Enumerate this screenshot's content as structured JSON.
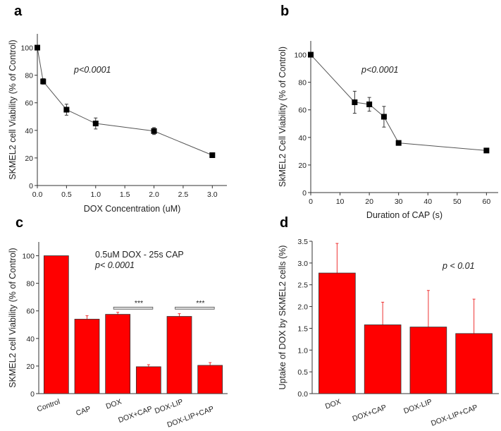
{
  "chart_data": [
    {
      "panel": "a",
      "type": "line",
      "xlabel": "DOX Concentration (uM)",
      "ylabel": "SKMEL2 cell Viability (% of Control)",
      "annotation": "p<0.0001",
      "x": [
        0,
        0.1,
        0.5,
        1.0,
        2.0,
        3.0
      ],
      "y": [
        100,
        75.5,
        55,
        45,
        39.5,
        22
      ],
      "yerr": [
        0,
        2,
        4,
        4,
        2.5,
        1
      ],
      "xlim": [
        0,
        3.25
      ],
      "ylim": [
        0,
        110
      ],
      "xticks": [
        "0.0",
        "0.5",
        "1.0",
        "1.5",
        "2.0",
        "2.5",
        "3.0"
      ],
      "yticks": [
        "0",
        "20",
        "40",
        "60",
        "80",
        "100"
      ],
      "marker": "square",
      "color": "#000000",
      "grid": false
    },
    {
      "panel": "b",
      "type": "line",
      "xlabel": "Duration of CAP (s)",
      "ylabel": "SkMEL2 Cell Viability  (% of Control)",
      "annotation": "p<0.0001",
      "x": [
        0,
        15,
        20,
        25,
        30,
        60
      ],
      "y": [
        100,
        65.5,
        64,
        55,
        36,
        30.5
      ],
      "yerr": [
        0,
        8,
        5,
        7.5,
        1,
        1.5
      ],
      "xlim": [
        0,
        64
      ],
      "ylim": [
        0,
        110
      ],
      "xticks": [
        "0",
        "10",
        "20",
        "30",
        "40",
        "50",
        "60"
      ],
      "yticks": [
        "0",
        "20",
        "40",
        "60",
        "80",
        "100"
      ],
      "marker": "square",
      "color": "#000000",
      "grid": false
    },
    {
      "panel": "c",
      "type": "bar",
      "ylabel": "SKMEL2  cell Viability (% of Control)",
      "annotation_line1": "0.5uM DOX -  25s CAP",
      "annotation_line2": "p< 0.0001",
      "categories": [
        "Control",
        "CAP",
        "DOX",
        "DOX+CAP",
        "DOX-LIP",
        "DOX-LIP+CAP"
      ],
      "values": [
        100,
        54,
        57.5,
        19.5,
        56,
        20.5
      ],
      "yerr": [
        0,
        2.5,
        1.5,
        1.5,
        2,
        2
      ],
      "ylim": [
        0,
        110
      ],
      "yticks": [
        "0",
        "20",
        "40",
        "60",
        "80",
        "100"
      ],
      "significance": [
        {
          "from": "DOX",
          "to": "DOX+CAP",
          "label": "***",
          "y": 62
        },
        {
          "from": "DOX-LIP",
          "to": "DOX-LIP+CAP",
          "label": "***",
          "y": 62
        }
      ],
      "color": "#ff0000",
      "grid": false
    },
    {
      "panel": "d",
      "type": "bar",
      "ylabel": "Uptake of DOX by SKMEL2 cells (%)",
      "annotation": "p < 0.01",
      "categories": [
        "DOX",
        "DOX+CAP",
        "DOX-LIP",
        "DOX-LIP+CAP"
      ],
      "values": [
        2.77,
        1.58,
        1.53,
        1.38
      ],
      "yerr": [
        0.68,
        0.52,
        0.84,
        0.79
      ],
      "ylim": [
        0,
        3.5
      ],
      "yticks": [
        "0.0",
        "0.5",
        "1.0",
        "1.5",
        "2.0",
        "2.5",
        "3.0",
        "3.5"
      ],
      "color": "#ff0000",
      "grid": false
    }
  ]
}
